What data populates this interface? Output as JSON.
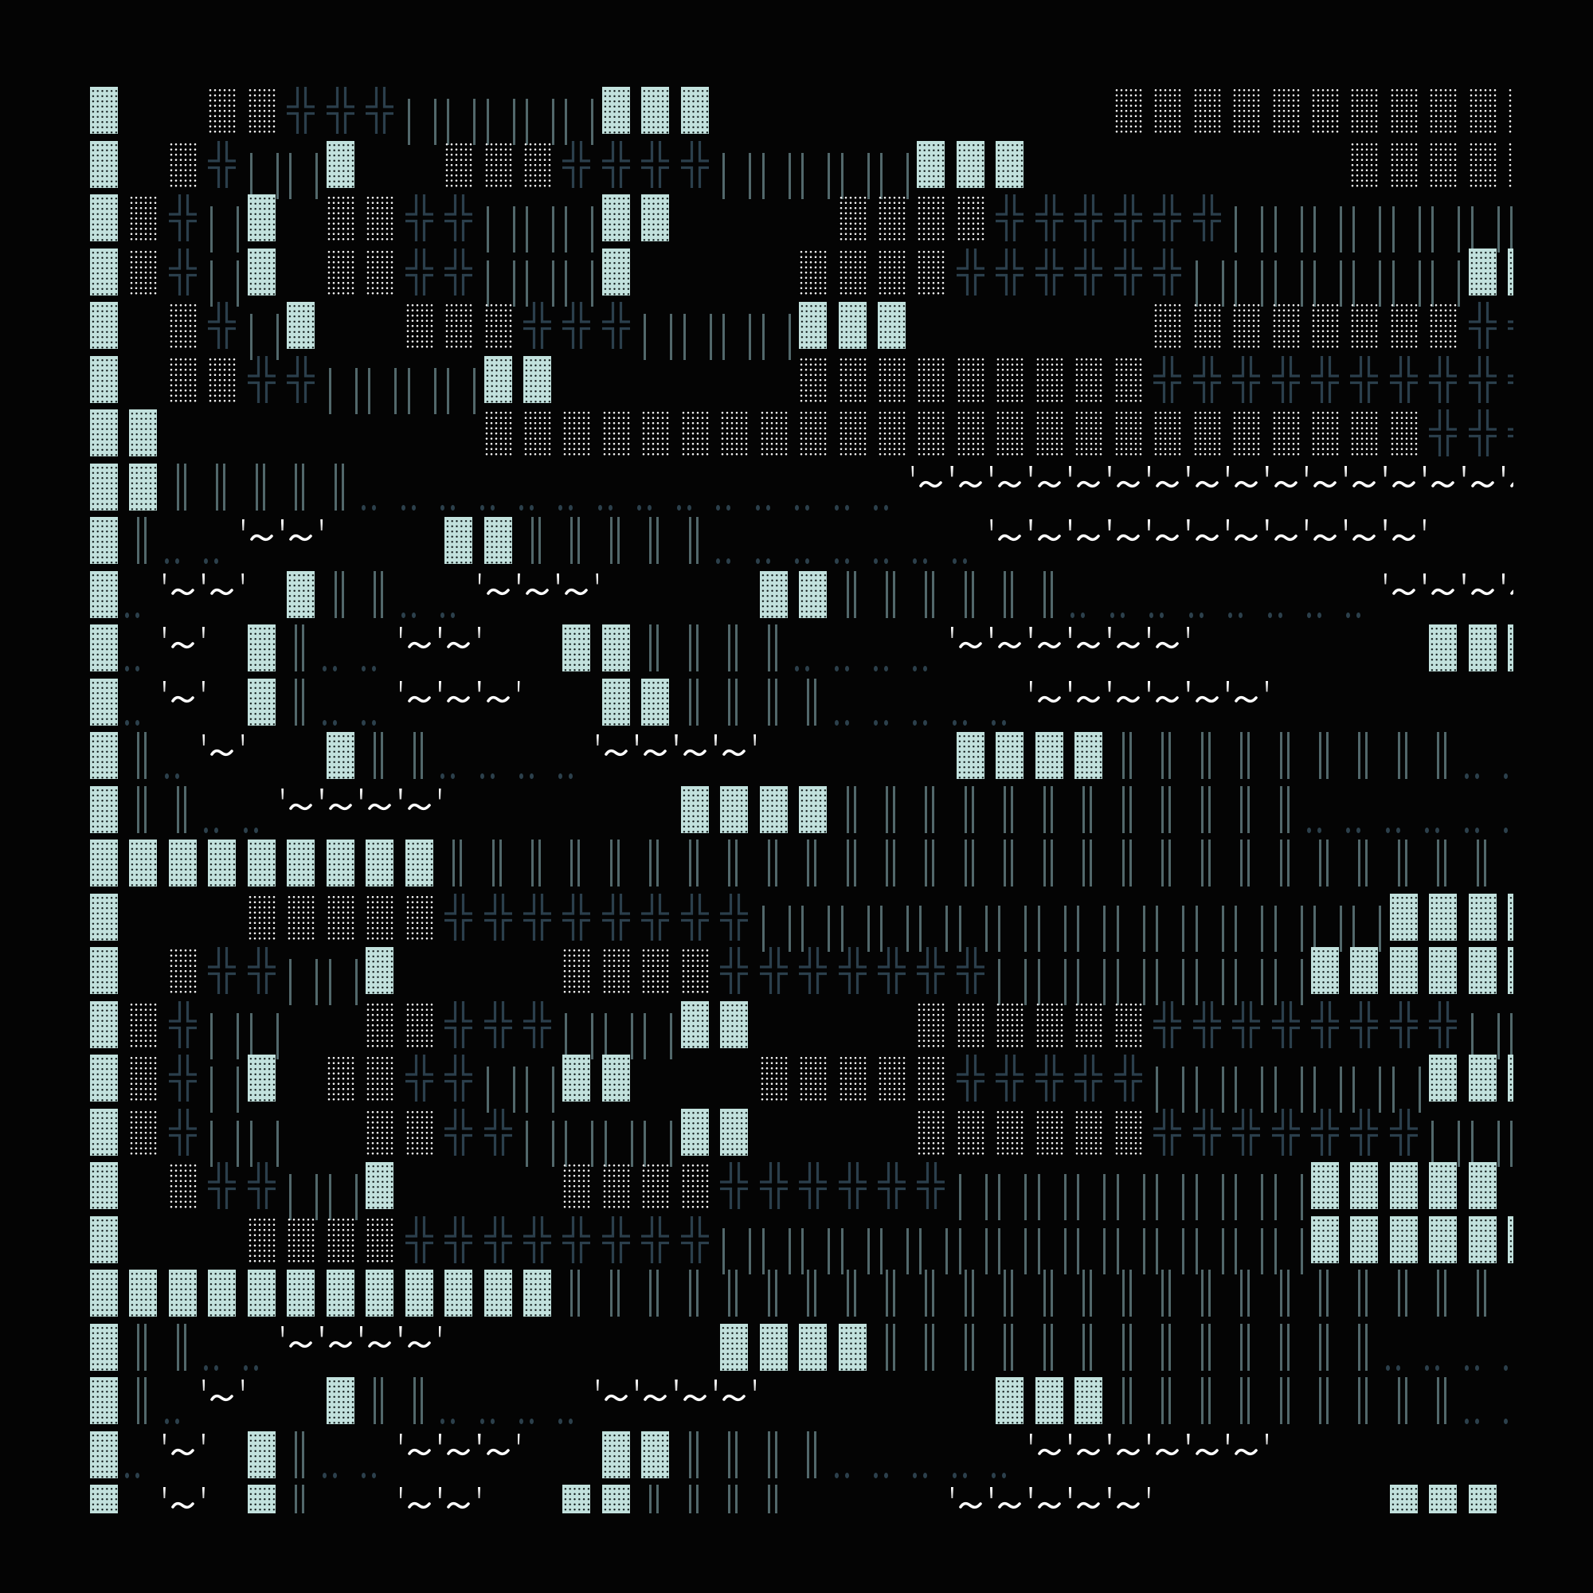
{
  "palette": {
    "background": "#040404",
    "dense_block": "#c2e1dd",
    "shade_dots": "#f4f4f4",
    "cross": "#2b3f4c",
    "bars": "#52686b",
    "dots": "#2c404c",
    "tilde": "#ffffff"
  },
  "glyphs": {
    "▓": "dense-block",
    "▒": "dotted-shade",
    "╬": "double-cross",
    "|": "pipe-pair",
    "║": "double-bar",
    "‥": "two-dots",
    "~": "quote-tilde"
  },
  "rows": [
    "▓  ▒▒╬╬╬|||||▓▓▓          ▒▒▒▒▒▒▒▒▒▒▒",
    "▓ ▒╬||▓  ▒▒▒╬╬╬╬|||||▓▓▓        ▒▒▒▒▒",
    "▓▒╬|▓ ▒▒╬╬|||▓▓    ▒▒▒▒╬╬╬╬╬╬||||||||",
    "▓▒╬|▓ ▒▒╬╬|||▓    ▒▒▒▒╬╬╬╬╬╬|||||||▓▓",
    "▓ ▒╬|▓  ▒▒▒╬╬╬||||▓▓▓      ▒▒▒▒▒▒▒▒╬╬",
    "▓ ▒▒╬╬||||▓▓      ▒▒▒▒▒▒▒▒▒╬╬╬╬╬╬╬╬╬╬",
    "▓▓        ▒▒▒▒▒▒▒▒▒▒▒▒▒▒▒▒▒▒▒▒▒▒▒▒╬╬╬",
    "▓▓║║║║║‥‥‥‥‥‥‥‥‥‥‥‥‥‥~~~~~~~~~~~~~~~~",
    "▓║‥‥~~   ▓▓║║║║║‥‥‥‥‥‥‥~~~~~~~~~~~   ",
    "▓‥~~ ▓║║‥‥~~~    ▓▓║║║║║║‥‥‥‥‥‥‥‥~~~~",
    "▓‥~ ▓║‥‥~~  ▓▓║║║║‥‥‥‥~~~~~~      ▓▓▓",
    "▓‥~ ▓║‥‥~~~  ▓▓║║║║‥‥‥‥‥~~~~~~       ",
    "▓║‥~  ▓║║‥‥‥‥~~~~     ▓▓▓▓║║║║║║║║║‥‥",
    "▓║║‥‥~~~~      ▓▓▓▓║║║║║║║║║║║║‥‥‥‥‥‥",
    "▓▓▓▓▓▓▓▓▓║║║║║║║║║║║║║║║║║║║║║║║║║║║ ",
    "▓   ▒▒▒▒▒╬╬╬╬╬╬╬╬||||||||||||||||▓▓▓▓",
    "▓ ▒╬╬||▓    ▒▒▒▒╬╬╬╬╬╬╬||||||||▓▓▓▓▓▓",
    "▓▒╬||  ▒▒╬╬╬|||▓▓    ▒▒▒▒▒▒╬╬╬╬╬╬╬╬||",
    "▓▒╬|▓ ▒▒╬╬||▓▓   ▒▒▒▒▒╬╬╬╬╬|||||||▓▓▓",
    "▓▒╬||  ▒▒╬╬||||▓▓    ▒▒▒▒▒▒╬╬╬╬╬╬╬|||",
    "▓ ▒╬╬||▓    ▒▒▒▒╬╬╬╬╬╬|||||||||▓▓▓▓▓ ",
    "▓   ▒▒▒▒╬╬╬╬╬╬╬╬|||||||||||||||▓▓▓▓▓▓",
    "▓▓▓▓▓▓▓▓▓▓▓▓║║║║║║║║║║║║║║║║║║║║║║║║ ",
    "▓║║‥‥~~~~       ▓▓▓▓║║║║║║║║║║║║║‥‥‥‥",
    "▓║‥~  ▓║║‥‥‥‥~~~~      ▓▓▓║║║║║║║║║‥‥",
    "▓‥~ ▓║‥‥~~~  ▓▓║║║║‥‥‥‥‥~~~~~~       ",
    "▓‥~ ▓║‥‥~~  ▓▓║║║║‥‥‥‥~~~~~      ▓▓▓"
  ]
}
